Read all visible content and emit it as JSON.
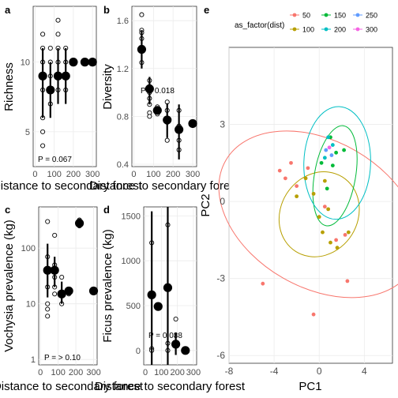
{
  "figure": {
    "panels": [
      {
        "id": "a",
        "letter": "a",
        "ylabel": "Richness",
        "xlabel": "Distance to secondary forest",
        "p_label": "P = 0.067",
        "yticks": [
          5,
          10
        ],
        "xticks": [
          0,
          100,
          200,
          300
        ]
      },
      {
        "id": "b",
        "letter": "b",
        "ylabel": "Diversity",
        "xlabel": "Distance to secondary forest",
        "p_label": "P = 0.018",
        "yticks": [
          0.4,
          0.8,
          1.2,
          1.6
        ],
        "xticks": [
          0,
          100,
          200,
          300
        ]
      },
      {
        "id": "c",
        "letter": "c",
        "ylabel": "Vochysia prevalence (kg)",
        "xlabel": "Distance to secondary forest",
        "p_label": "P = > 0.10",
        "yticks": [
          1,
          10,
          100
        ],
        "xticks": [
          0,
          100,
          200,
          300
        ]
      },
      {
        "id": "d",
        "letter": "d",
        "ylabel": "Ficus prevalence (kg)",
        "xlabel": "Distance to secondary forest",
        "p_label": "P = 0.088",
        "yticks": [
          0,
          500,
          1000,
          1500
        ],
        "xticks": [
          0,
          100,
          200,
          300
        ]
      },
      {
        "id": "e",
        "letter": "e",
        "xlabel": "PC1",
        "ylabel": "PC2",
        "xticks": [
          -8,
          -4,
          0,
          4
        ],
        "yticks": [
          -6,
          -3,
          0,
          3
        ]
      }
    ],
    "legend": {
      "title": "as_factor(dist)",
      "items": [
        {
          "label": "50",
          "color": "#F8766D"
        },
        {
          "label": "100",
          "color": "#B79F00"
        },
        {
          "label": "150",
          "color": "#00BA38"
        },
        {
          "label": "200",
          "color": "#00BFC4"
        },
        {
          "label": "250",
          "color": "#619CFF"
        },
        {
          "label": "300",
          "color": "#F564E3"
        }
      ]
    }
  },
  "chart_data": [
    {
      "id": "a",
      "type": "scatter",
      "title": "",
      "xlabel": "Distance to secondary forest",
      "ylabel": "Richness",
      "xlim": [
        -10,
        320
      ],
      "ylim": [
        2.5,
        14
      ],
      "raw": [
        [
          40,
          12
        ],
        [
          40,
          11
        ],
        [
          40,
          8
        ],
        [
          40,
          6
        ],
        [
          40,
          5
        ],
        [
          40,
          4
        ],
        [
          40,
          10
        ],
        [
          80,
          11
        ],
        [
          80,
          9
        ],
        [
          80,
          7
        ],
        [
          80,
          10
        ],
        [
          120,
          11
        ],
        [
          120,
          10
        ],
        [
          120,
          8
        ],
        [
          120,
          12
        ],
        [
          120,
          13
        ],
        [
          160,
          11
        ],
        [
          160,
          9
        ],
        [
          160,
          8
        ],
        [
          160,
          10
        ],
        [
          200,
          10
        ],
        [
          260,
          10
        ],
        [
          300,
          10
        ]
      ],
      "means": [
        {
          "x": 40,
          "y": 9,
          "lo": 6,
          "hi": 11
        },
        {
          "x": 80,
          "y": 8,
          "lo": 6,
          "hi": 10
        },
        {
          "x": 120,
          "y": 9,
          "lo": 7,
          "hi": 11
        },
        {
          "x": 160,
          "y": 9,
          "lo": 7,
          "hi": 11
        },
        {
          "x": 200,
          "y": 10,
          "lo": 10,
          "hi": 10
        },
        {
          "x": 260,
          "y": 10,
          "lo": 10,
          "hi": 10
        },
        {
          "x": 300,
          "y": 10,
          "lo": 10,
          "hi": 10
        }
      ]
    },
    {
      "id": "b",
      "type": "scatter",
      "title": "",
      "xlabel": "Distance to secondary forest",
      "ylabel": "Diversity",
      "xlim": [
        -10,
        320
      ],
      "ylim": [
        0.38,
        1.72
      ],
      "raw": [
        [
          40,
          1.65
        ],
        [
          40,
          1.52
        ],
        [
          40,
          1.5
        ],
        [
          40,
          1.45
        ],
        [
          40,
          1.35
        ],
        [
          40,
          1.25
        ],
        [
          80,
          1.1
        ],
        [
          80,
          1.05
        ],
        [
          80,
          1.0
        ],
        [
          80,
          0.95
        ],
        [
          80,
          0.9
        ],
        [
          80,
          0.83
        ],
        [
          80,
          0.8
        ],
        [
          120,
          0.88
        ],
        [
          120,
          0.85
        ],
        [
          120,
          0.82
        ],
        [
          170,
          0.92
        ],
        [
          170,
          0.85
        ],
        [
          170,
          0.75
        ],
        [
          170,
          0.6
        ],
        [
          230,
          0.85
        ],
        [
          230,
          0.72
        ],
        [
          230,
          0.6
        ],
        [
          230,
          0.52
        ],
        [
          300,
          0.74
        ]
      ],
      "means": [
        {
          "x": 40,
          "y": 1.36,
          "lo": 1.2,
          "hi": 1.52
        },
        {
          "x": 80,
          "y": 1.03,
          "lo": 0.9,
          "hi": 1.13
        },
        {
          "x": 120,
          "y": 0.85,
          "lo": 0.82,
          "hi": 0.88
        },
        {
          "x": 170,
          "y": 0.77,
          "lo": 0.62,
          "hi": 0.91
        },
        {
          "x": 230,
          "y": 0.69,
          "lo": 0.44,
          "hi": 0.9
        },
        {
          "x": 300,
          "y": 0.74,
          "lo": 0.74,
          "hi": 0.74
        }
      ]
    },
    {
      "id": "c",
      "type": "scatter",
      "title": "",
      "xlabel": "Distance to secondary forest",
      "ylabel": "Vochysia prevalence (kg)",
      "yscale": "log",
      "xlim": [
        -10,
        320
      ],
      "ylim": [
        0.8,
        550
      ],
      "raw": [
        [
          40,
          300
        ],
        [
          40,
          70
        ],
        [
          40,
          40
        ],
        [
          40,
          20
        ],
        [
          40,
          10
        ],
        [
          40,
          8
        ],
        [
          40,
          6
        ],
        [
          80,
          170
        ],
        [
          80,
          50
        ],
        [
          80,
          30
        ],
        [
          80,
          20
        ],
        [
          80,
          15
        ],
        [
          120,
          15
        ],
        [
          120,
          30
        ],
        [
          120,
          10
        ],
        [
          160,
          18
        ],
        [
          160,
          15
        ],
        [
          220,
          320
        ],
        [
          220,
          250
        ],
        [
          300,
          17
        ]
      ],
      "means": [
        {
          "x": 40,
          "y": 40,
          "lo": 13,
          "hi": 120
        },
        {
          "x": 80,
          "y": 40,
          "lo": 20,
          "hi": 70
        },
        {
          "x": 120,
          "y": 15,
          "lo": 10,
          "hi": 25
        },
        {
          "x": 160,
          "y": 17,
          "lo": 15,
          "hi": 20
        },
        {
          "x": 220,
          "y": 280,
          "lo": 240,
          "hi": 340
        },
        {
          "x": 300,
          "y": 17,
          "lo": 17,
          "hi": 17
        }
      ]
    },
    {
      "id": "d",
      "type": "scatter",
      "title": "",
      "xlabel": "Distance to secondary forest",
      "ylabel": "Ficus prevalence (kg)",
      "xlim": [
        -10,
        320
      ],
      "ylim": [
        -160,
        1600
      ],
      "raw": [
        [
          40,
          1200
        ],
        [
          40,
          20
        ],
        [
          40,
          0
        ],
        [
          80,
          500
        ],
        [
          140,
          1400
        ],
        [
          140,
          80
        ],
        [
          140,
          0
        ],
        [
          190,
          350
        ],
        [
          190,
          60
        ],
        [
          250,
          0
        ]
      ],
      "means": [
        {
          "x": 40,
          "y": 620,
          "lo": -300,
          "hi": 1550
        },
        {
          "x": 80,
          "y": 490,
          "lo": 490,
          "hi": 490
        },
        {
          "x": 140,
          "y": 700,
          "lo": -300,
          "hi": 1650
        },
        {
          "x": 190,
          "y": 70,
          "lo": -50,
          "hi": 200
        },
        {
          "x": 250,
          "y": 0,
          "lo": 0,
          "hi": 0
        }
      ]
    },
    {
      "id": "e",
      "type": "scatter",
      "title": "",
      "xlabel": "PC1",
      "ylabel": "PC2",
      "xlim": [
        -8,
        6.5
      ],
      "ylim": [
        -6.3,
        6
      ],
      "points": [
        {
          "g": "50",
          "x": -5,
          "y": -3.2
        },
        {
          "g": "50",
          "x": -3.5,
          "y": 1.2
        },
        {
          "g": "50",
          "x": -3,
          "y": 0.9
        },
        {
          "g": "50",
          "x": -2.5,
          "y": 1.5
        },
        {
          "g": "50",
          "x": -2,
          "y": 0.6
        },
        {
          "g": "50",
          "x": -0.5,
          "y": -4.4
        },
        {
          "g": "50",
          "x": 1.5,
          "y": -1.5
        },
        {
          "g": "50",
          "x": 2.3,
          "y": -1.3
        },
        {
          "g": "50",
          "x": 2.5,
          "y": -3.1
        },
        {
          "g": "50",
          "x": 0.5,
          "y": -0.2
        },
        {
          "g": "50",
          "x": -1,
          "y": 1.3
        },
        {
          "g": "100",
          "x": -1.2,
          "y": 0.9
        },
        {
          "g": "100",
          "x": -0.5,
          "y": 0.3
        },
        {
          "g": "100",
          "x": 0,
          "y": -0.6
        },
        {
          "g": "100",
          "x": 0.3,
          "y": -1.2
        },
        {
          "g": "100",
          "x": 0.8,
          "y": -0.3
        },
        {
          "g": "100",
          "x": 1,
          "y": -1.6
        },
        {
          "g": "100",
          "x": 1.6,
          "y": -1.8
        },
        {
          "g": "100",
          "x": 2.6,
          "y": -1.2
        },
        {
          "g": "100",
          "x": -2,
          "y": 0.2
        },
        {
          "g": "100",
          "x": 0.5,
          "y": 0.8
        },
        {
          "g": "150",
          "x": 0.7,
          "y": 0.5
        },
        {
          "g": "150",
          "x": 1.2,
          "y": 1.4
        },
        {
          "g": "150",
          "x": 1.5,
          "y": 1.9
        },
        {
          "g": "150",
          "x": 2.2,
          "y": 2
        },
        {
          "g": "150",
          "x": 0.2,
          "y": 1.5
        },
        {
          "g": "150",
          "x": 1,
          "y": 2.5
        },
        {
          "g": "200",
          "x": 0.5,
          "y": 1.7
        },
        {
          "g": "200",
          "x": 0.8,
          "y": 2.5
        },
        {
          "g": "200",
          "x": 1.2,
          "y": 2.2
        },
        {
          "g": "250",
          "x": 0.6,
          "y": 2
        },
        {
          "g": "250",
          "x": 1.1,
          "y": 1.8
        },
        {
          "g": "300",
          "x": 0.9,
          "y": 2.1
        }
      ],
      "ellipses": [
        {
          "g": "50",
          "cx": 0,
          "cy": -0.5,
          "rx": 6.5,
          "ry": 4.2,
          "angle": -60
        },
        {
          "g": "100",
          "cx": 0,
          "cy": -0.5,
          "rx": 3.9,
          "ry": 1.5,
          "angle": -58
        },
        {
          "g": "150",
          "cx": 1.4,
          "cy": 1,
          "rx": 4.5,
          "ry": 0.8,
          "angle": -80
        },
        {
          "g": "200",
          "cx": 1.6,
          "cy": 1.5,
          "rx": 5,
          "ry": 1.3,
          "angle": -88
        }
      ]
    }
  ]
}
